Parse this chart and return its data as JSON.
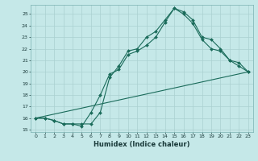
{
  "xlabel": "Humidex (Indice chaleur)",
  "bg_color": "#c5e8e8",
  "grid_color": "#aad0d0",
  "line_color": "#1a6b5a",
  "xlim": [
    -0.5,
    23.5
  ],
  "ylim": [
    14.8,
    25.8
  ],
  "xticks": [
    0,
    1,
    2,
    3,
    4,
    5,
    6,
    7,
    8,
    9,
    10,
    11,
    12,
    13,
    14,
    15,
    16,
    17,
    18,
    19,
    20,
    21,
    22,
    23
  ],
  "yticks": [
    15,
    16,
    17,
    18,
    19,
    20,
    21,
    22,
    23,
    24,
    25
  ],
  "line1_x": [
    0,
    1,
    2,
    3,
    4,
    5,
    6,
    7,
    8,
    9,
    10,
    11,
    12,
    13,
    14,
    15,
    16,
    17,
    18,
    19,
    20,
    21,
    22,
    23
  ],
  "line1_y": [
    16,
    16,
    15.8,
    15.5,
    15.5,
    15.5,
    15.5,
    16.5,
    19.5,
    20.5,
    21.8,
    22,
    23,
    23.5,
    24.5,
    25.5,
    25.2,
    24.5,
    23,
    22.8,
    22,
    21,
    20.8,
    20
  ],
  "line2_x": [
    0,
    1,
    2,
    3,
    4,
    5,
    6,
    7,
    8,
    9,
    10,
    11,
    12,
    13,
    14,
    15,
    16,
    17,
    18,
    19,
    20,
    21,
    22,
    23
  ],
  "line2_y": [
    16,
    16,
    15.8,
    15.5,
    15.5,
    15.3,
    16.5,
    18.0,
    19.8,
    20.2,
    21.5,
    21.8,
    22.3,
    23.0,
    24.3,
    25.5,
    25.0,
    24.2,
    22.8,
    22.0,
    21.8,
    21.0,
    20.5,
    20
  ],
  "line3_x": [
    0,
    23
  ],
  "line3_y": [
    16,
    20
  ]
}
